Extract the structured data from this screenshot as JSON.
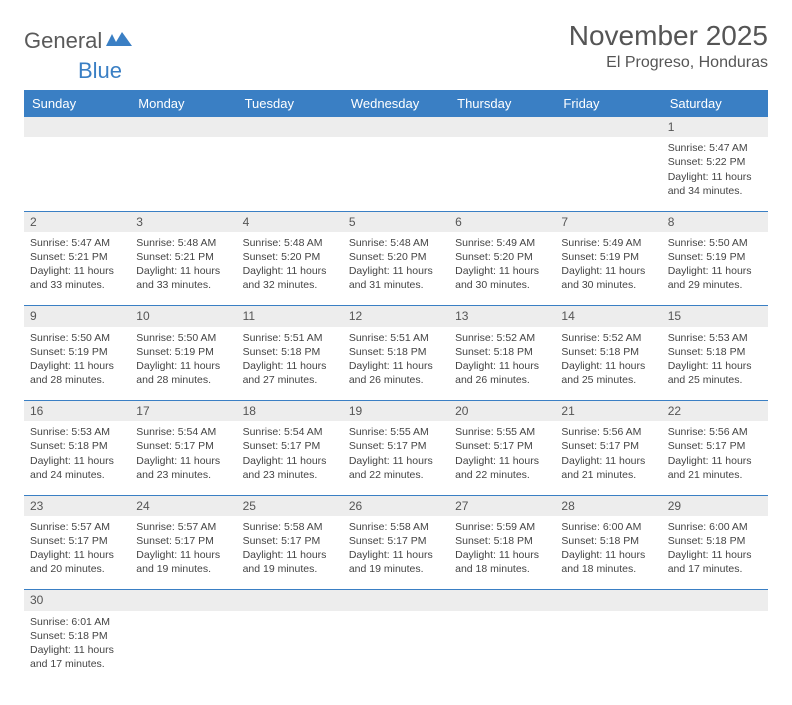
{
  "logo": {
    "text1": "General",
    "text2": "Blue"
  },
  "title": "November 2025",
  "location": "El Progreso, Honduras",
  "colors": {
    "header_bg": "#3a7fc4",
    "header_text": "#ffffff",
    "daynum_bg": "#ededed",
    "cell_border": "#3a7fc4",
    "body_text": "#444444",
    "title_text": "#555555"
  },
  "weekdays": [
    "Sunday",
    "Monday",
    "Tuesday",
    "Wednesday",
    "Thursday",
    "Friday",
    "Saturday"
  ],
  "weeks": [
    [
      null,
      null,
      null,
      null,
      null,
      null,
      {
        "n": "1",
        "sr": "Sunrise: 5:47 AM",
        "ss": "Sunset: 5:22 PM",
        "d1": "Daylight: 11 hours",
        "d2": "and 34 minutes."
      }
    ],
    [
      {
        "n": "2",
        "sr": "Sunrise: 5:47 AM",
        "ss": "Sunset: 5:21 PM",
        "d1": "Daylight: 11 hours",
        "d2": "and 33 minutes."
      },
      {
        "n": "3",
        "sr": "Sunrise: 5:48 AM",
        "ss": "Sunset: 5:21 PM",
        "d1": "Daylight: 11 hours",
        "d2": "and 33 minutes."
      },
      {
        "n": "4",
        "sr": "Sunrise: 5:48 AM",
        "ss": "Sunset: 5:20 PM",
        "d1": "Daylight: 11 hours",
        "d2": "and 32 minutes."
      },
      {
        "n": "5",
        "sr": "Sunrise: 5:48 AM",
        "ss": "Sunset: 5:20 PM",
        "d1": "Daylight: 11 hours",
        "d2": "and 31 minutes."
      },
      {
        "n": "6",
        "sr": "Sunrise: 5:49 AM",
        "ss": "Sunset: 5:20 PM",
        "d1": "Daylight: 11 hours",
        "d2": "and 30 minutes."
      },
      {
        "n": "7",
        "sr": "Sunrise: 5:49 AM",
        "ss": "Sunset: 5:19 PM",
        "d1": "Daylight: 11 hours",
        "d2": "and 30 minutes."
      },
      {
        "n": "8",
        "sr": "Sunrise: 5:50 AM",
        "ss": "Sunset: 5:19 PM",
        "d1": "Daylight: 11 hours",
        "d2": "and 29 minutes."
      }
    ],
    [
      {
        "n": "9",
        "sr": "Sunrise: 5:50 AM",
        "ss": "Sunset: 5:19 PM",
        "d1": "Daylight: 11 hours",
        "d2": "and 28 minutes."
      },
      {
        "n": "10",
        "sr": "Sunrise: 5:50 AM",
        "ss": "Sunset: 5:19 PM",
        "d1": "Daylight: 11 hours",
        "d2": "and 28 minutes."
      },
      {
        "n": "11",
        "sr": "Sunrise: 5:51 AM",
        "ss": "Sunset: 5:18 PM",
        "d1": "Daylight: 11 hours",
        "d2": "and 27 minutes."
      },
      {
        "n": "12",
        "sr": "Sunrise: 5:51 AM",
        "ss": "Sunset: 5:18 PM",
        "d1": "Daylight: 11 hours",
        "d2": "and 26 minutes."
      },
      {
        "n": "13",
        "sr": "Sunrise: 5:52 AM",
        "ss": "Sunset: 5:18 PM",
        "d1": "Daylight: 11 hours",
        "d2": "and 26 minutes."
      },
      {
        "n": "14",
        "sr": "Sunrise: 5:52 AM",
        "ss": "Sunset: 5:18 PM",
        "d1": "Daylight: 11 hours",
        "d2": "and 25 minutes."
      },
      {
        "n": "15",
        "sr": "Sunrise: 5:53 AM",
        "ss": "Sunset: 5:18 PM",
        "d1": "Daylight: 11 hours",
        "d2": "and 25 minutes."
      }
    ],
    [
      {
        "n": "16",
        "sr": "Sunrise: 5:53 AM",
        "ss": "Sunset: 5:18 PM",
        "d1": "Daylight: 11 hours",
        "d2": "and 24 minutes."
      },
      {
        "n": "17",
        "sr": "Sunrise: 5:54 AM",
        "ss": "Sunset: 5:17 PM",
        "d1": "Daylight: 11 hours",
        "d2": "and 23 minutes."
      },
      {
        "n": "18",
        "sr": "Sunrise: 5:54 AM",
        "ss": "Sunset: 5:17 PM",
        "d1": "Daylight: 11 hours",
        "d2": "and 23 minutes."
      },
      {
        "n": "19",
        "sr": "Sunrise: 5:55 AM",
        "ss": "Sunset: 5:17 PM",
        "d1": "Daylight: 11 hours",
        "d2": "and 22 minutes."
      },
      {
        "n": "20",
        "sr": "Sunrise: 5:55 AM",
        "ss": "Sunset: 5:17 PM",
        "d1": "Daylight: 11 hours",
        "d2": "and 22 minutes."
      },
      {
        "n": "21",
        "sr": "Sunrise: 5:56 AM",
        "ss": "Sunset: 5:17 PM",
        "d1": "Daylight: 11 hours",
        "d2": "and 21 minutes."
      },
      {
        "n": "22",
        "sr": "Sunrise: 5:56 AM",
        "ss": "Sunset: 5:17 PM",
        "d1": "Daylight: 11 hours",
        "d2": "and 21 minutes."
      }
    ],
    [
      {
        "n": "23",
        "sr": "Sunrise: 5:57 AM",
        "ss": "Sunset: 5:17 PM",
        "d1": "Daylight: 11 hours",
        "d2": "and 20 minutes."
      },
      {
        "n": "24",
        "sr": "Sunrise: 5:57 AM",
        "ss": "Sunset: 5:17 PM",
        "d1": "Daylight: 11 hours",
        "d2": "and 19 minutes."
      },
      {
        "n": "25",
        "sr": "Sunrise: 5:58 AM",
        "ss": "Sunset: 5:17 PM",
        "d1": "Daylight: 11 hours",
        "d2": "and 19 minutes."
      },
      {
        "n": "26",
        "sr": "Sunrise: 5:58 AM",
        "ss": "Sunset: 5:17 PM",
        "d1": "Daylight: 11 hours",
        "d2": "and 19 minutes."
      },
      {
        "n": "27",
        "sr": "Sunrise: 5:59 AM",
        "ss": "Sunset: 5:18 PM",
        "d1": "Daylight: 11 hours",
        "d2": "and 18 minutes."
      },
      {
        "n": "28",
        "sr": "Sunrise: 6:00 AM",
        "ss": "Sunset: 5:18 PM",
        "d1": "Daylight: 11 hours",
        "d2": "and 18 minutes."
      },
      {
        "n": "29",
        "sr": "Sunrise: 6:00 AM",
        "ss": "Sunset: 5:18 PM",
        "d1": "Daylight: 11 hours",
        "d2": "and 17 minutes."
      }
    ],
    [
      {
        "n": "30",
        "sr": "Sunrise: 6:01 AM",
        "ss": "Sunset: 5:18 PM",
        "d1": "Daylight: 11 hours",
        "d2": "and 17 minutes."
      },
      null,
      null,
      null,
      null,
      null,
      null
    ]
  ]
}
